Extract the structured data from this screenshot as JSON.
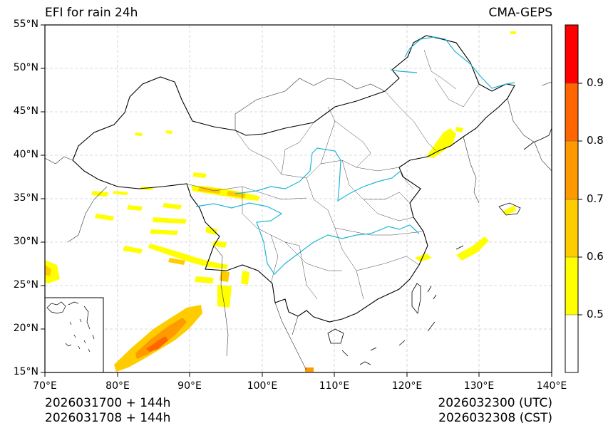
{
  "title": {
    "left": "EFI for rain 24h",
    "right": "CMA-GEPS"
  },
  "axes": {
    "lat_labels": [
      "55°N",
      "50°N",
      "45°N",
      "40°N",
      "35°N",
      "30°N",
      "25°N",
      "20°N",
      "15°N"
    ],
    "lon_labels": [
      "70°E",
      "80°E",
      "90°E",
      "100°E",
      "110°E",
      "120°E",
      "130°E",
      "140°E"
    ]
  },
  "colorbar": {
    "labels": [
      "0.9",
      "0.8",
      "0.7",
      "0.6",
      "0.5"
    ],
    "colors": [
      "#ffffff",
      "#ffff00",
      "#ffcc00",
      "#ff9900",
      "#ff6600",
      "#ff0000"
    ]
  },
  "footer": {
    "init_utc": "2026031700 + 144h",
    "init_cst": "2026031708 + 144h",
    "valid_utc": "2026032300 (UTC)",
    "valid_cst": "2026032308 (CST)"
  },
  "map_colors": {
    "river": "#1fb6d6",
    "border": "#000000",
    "province": "#333333",
    "grid": "#cccccc"
  }
}
